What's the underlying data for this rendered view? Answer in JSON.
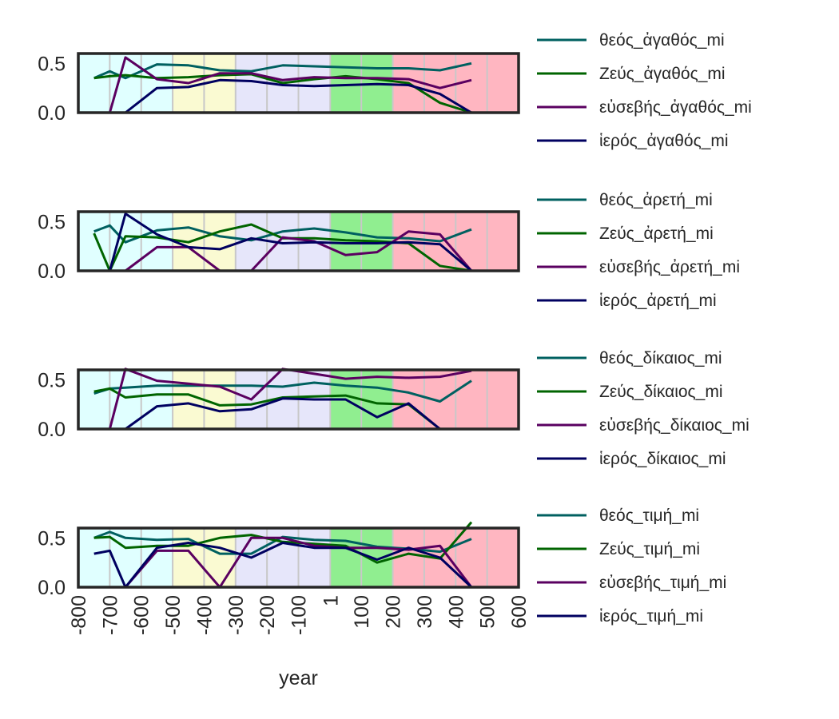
{
  "chart_data": [
    {
      "type": "line",
      "x": [
        -750,
        -700,
        -650,
        -550,
        -450,
        -350,
        -250,
        -150,
        -50,
        50,
        150,
        250,
        350,
        450,
        550
      ],
      "xlim": [
        -800,
        600
      ],
      "ylim": [
        0,
        0.6
      ],
      "yticks": [
        "0.0",
        "0.5"
      ],
      "series": [
        {
          "name": "θεός_ἀγαθός_mi",
          "color": "#006060",
          "values": [
            0.35,
            0.42,
            0.35,
            0.49,
            0.48,
            0.43,
            0.42,
            0.48,
            0.47,
            0.46,
            0.45,
            0.45,
            0.43,
            0.5,
            null
          ]
        },
        {
          "name": "Ζεύς_ἀγαθός_mi",
          "color": "#006400",
          "values": [
            0.35,
            0.37,
            0.38,
            0.35,
            0.36,
            0.38,
            0.39,
            0.3,
            0.34,
            0.37,
            0.34,
            0.3,
            0.1,
            0.0,
            null
          ]
        },
        {
          "name": "εὐσεβής_ἀγαθός_mi",
          "color": "#5a0060",
          "values": [
            0.0,
            0.0,
            0.56,
            0.34,
            0.3,
            0.4,
            0.4,
            0.33,
            0.36,
            0.35,
            0.35,
            0.34,
            0.25,
            0.33,
            null
          ]
        },
        {
          "name": "ἱερός_ἀγαθός_mi",
          "color": "#000060",
          "values": [
            0.0,
            0.0,
            0.0,
            0.25,
            0.26,
            0.33,
            0.32,
            0.28,
            0.27,
            0.28,
            0.29,
            0.28,
            0.19,
            0.0,
            null
          ]
        }
      ]
    },
    {
      "type": "line",
      "x": [
        -750,
        -700,
        -650,
        -550,
        -450,
        -350,
        -250,
        -150,
        -50,
        50,
        150,
        250,
        350,
        450,
        550
      ],
      "xlim": [
        -800,
        600
      ],
      "ylim": [
        0,
        0.6
      ],
      "yticks": [
        "0.0",
        "0.5"
      ],
      "series": [
        {
          "name": "θεός_ἀρετή_mi",
          "color": "#006060",
          "values": [
            0.4,
            0.46,
            0.29,
            0.41,
            0.44,
            0.35,
            0.31,
            0.4,
            0.43,
            0.39,
            0.34,
            0.33,
            0.3,
            0.42,
            null
          ]
        },
        {
          "name": "Ζεύς_ἀρετή_mi",
          "color": "#006400",
          "values": [
            0.38,
            0.0,
            0.35,
            0.34,
            0.29,
            0.4,
            0.47,
            0.33,
            0.33,
            0.31,
            0.3,
            0.28,
            0.05,
            0.0,
            null
          ]
        },
        {
          "name": "εὐσεβής_ἀρετή_mi",
          "color": "#5a0060",
          "values": [
            0.0,
            0.0,
            0.0,
            0.24,
            0.24,
            0.0,
            0.0,
            0.34,
            0.3,
            0.16,
            0.19,
            0.4,
            0.37,
            0.0,
            null
          ]
        },
        {
          "name": "ἱερός_ἀρετή_mi",
          "color": "#000060",
          "values": [
            0.0,
            0.0,
            0.58,
            0.37,
            0.24,
            0.22,
            0.33,
            0.28,
            0.29,
            0.28,
            0.28,
            0.29,
            0.27,
            0.0,
            null
          ]
        }
      ]
    },
    {
      "type": "line",
      "x": [
        -750,
        -700,
        -650,
        -550,
        -450,
        -350,
        -250,
        -150,
        -50,
        50,
        150,
        250,
        350,
        450,
        550
      ],
      "xlim": [
        -800,
        600
      ],
      "ylim": [
        0,
        0.6
      ],
      "yticks": [
        "0.0",
        "0.5"
      ],
      "series": [
        {
          "name": "θεός_δίκαιος_mi",
          "color": "#006060",
          "values": [
            0.36,
            0.41,
            0.42,
            0.44,
            0.44,
            0.44,
            0.44,
            0.43,
            0.47,
            0.44,
            0.42,
            0.37,
            0.28,
            0.49,
            null
          ]
        },
        {
          "name": "Ζεύς_δίκαιος_mi",
          "color": "#006400",
          "values": [
            0.38,
            0.41,
            0.32,
            0.35,
            0.35,
            0.24,
            0.25,
            0.32,
            0.33,
            0.34,
            0.26,
            0.25,
            0.0,
            0.0,
            null
          ]
        },
        {
          "name": "εὐσεβής_δίκαιος_mi",
          "color": "#5a0060",
          "values": [
            0.0,
            0.0,
            0.61,
            0.49,
            0.46,
            0.43,
            0.3,
            0.61,
            0.56,
            0.51,
            0.53,
            0.52,
            0.53,
            0.59,
            null
          ]
        },
        {
          "name": "ἱερός_δίκαιος_mi",
          "color": "#000060",
          "values": [
            0.0,
            0.0,
            0.0,
            0.23,
            0.26,
            0.18,
            0.2,
            0.31,
            0.3,
            0.3,
            0.12,
            0.26,
            0.0,
            0.0,
            null
          ]
        }
      ]
    },
    {
      "type": "line",
      "x": [
        -750,
        -700,
        -650,
        -550,
        -450,
        -350,
        -250,
        -150,
        -50,
        50,
        150,
        250,
        350,
        450,
        550
      ],
      "xlim": [
        -800,
        600
      ],
      "ylim": [
        0,
        0.6
      ],
      "yticks": [
        "0.0",
        "0.5"
      ],
      "series": [
        {
          "name": "θεός_τιμή_mi",
          "color": "#006060",
          "values": [
            0.5,
            0.56,
            0.5,
            0.48,
            0.49,
            0.34,
            0.34,
            0.51,
            0.48,
            0.47,
            0.41,
            0.39,
            0.36,
            0.49,
            null
          ]
        },
        {
          "name": "Ζεύς_τιμή_mi",
          "color": "#006400",
          "values": [
            0.5,
            0.51,
            0.4,
            0.42,
            0.42,
            0.5,
            0.53,
            0.46,
            0.44,
            0.42,
            0.25,
            0.34,
            0.29,
            0.66,
            null
          ]
        },
        {
          "name": "εὐσεβής_τιμή_mi",
          "color": "#5a0060",
          "values": [
            0.0,
            0.0,
            0.0,
            0.37,
            0.37,
            0.0,
            0.5,
            0.5,
            0.42,
            0.4,
            0.4,
            0.38,
            0.42,
            0.0,
            null
          ]
        },
        {
          "name": "ἱερός_τιμή_mi",
          "color": "#000060",
          "values": [
            0.34,
            0.37,
            0.0,
            0.4,
            0.45,
            0.4,
            0.3,
            0.45,
            0.4,
            0.4,
            0.28,
            0.4,
            0.3,
            0.0,
            null
          ]
        }
      ]
    }
  ],
  "x_axis": {
    "label": "year",
    "ticks": [
      {
        "value": -800,
        "label": "-800"
      },
      {
        "value": -700,
        "label": "-700"
      },
      {
        "value": -600,
        "label": "-600"
      },
      {
        "value": -500,
        "label": "-500"
      },
      {
        "value": -400,
        "label": "-400"
      },
      {
        "value": -300,
        "label": "-300"
      },
      {
        "value": -200,
        "label": "-200"
      },
      {
        "value": -100,
        "label": "-100"
      },
      {
        "value": 1,
        "label": "1"
      },
      {
        "value": 100,
        "label": "100"
      },
      {
        "value": 200,
        "label": "200"
      },
      {
        "value": 300,
        "label": "300"
      },
      {
        "value": 400,
        "label": "400"
      },
      {
        "value": 500,
        "label": "500"
      },
      {
        "value": 600,
        "label": "600"
      }
    ]
  },
  "period_bands": [
    {
      "from": -800,
      "to": -500,
      "color": "#e0ffff"
    },
    {
      "from": -500,
      "to": -300,
      "color": "#fafad2"
    },
    {
      "from": -300,
      "to": 1,
      "color": "#e6e6fa"
    },
    {
      "from": 1,
      "to": 200,
      "color": "#90ee90"
    },
    {
      "from": 200,
      "to": 600,
      "color": "#ffb6c1"
    }
  ],
  "grid": true,
  "legend_placement": "right"
}
